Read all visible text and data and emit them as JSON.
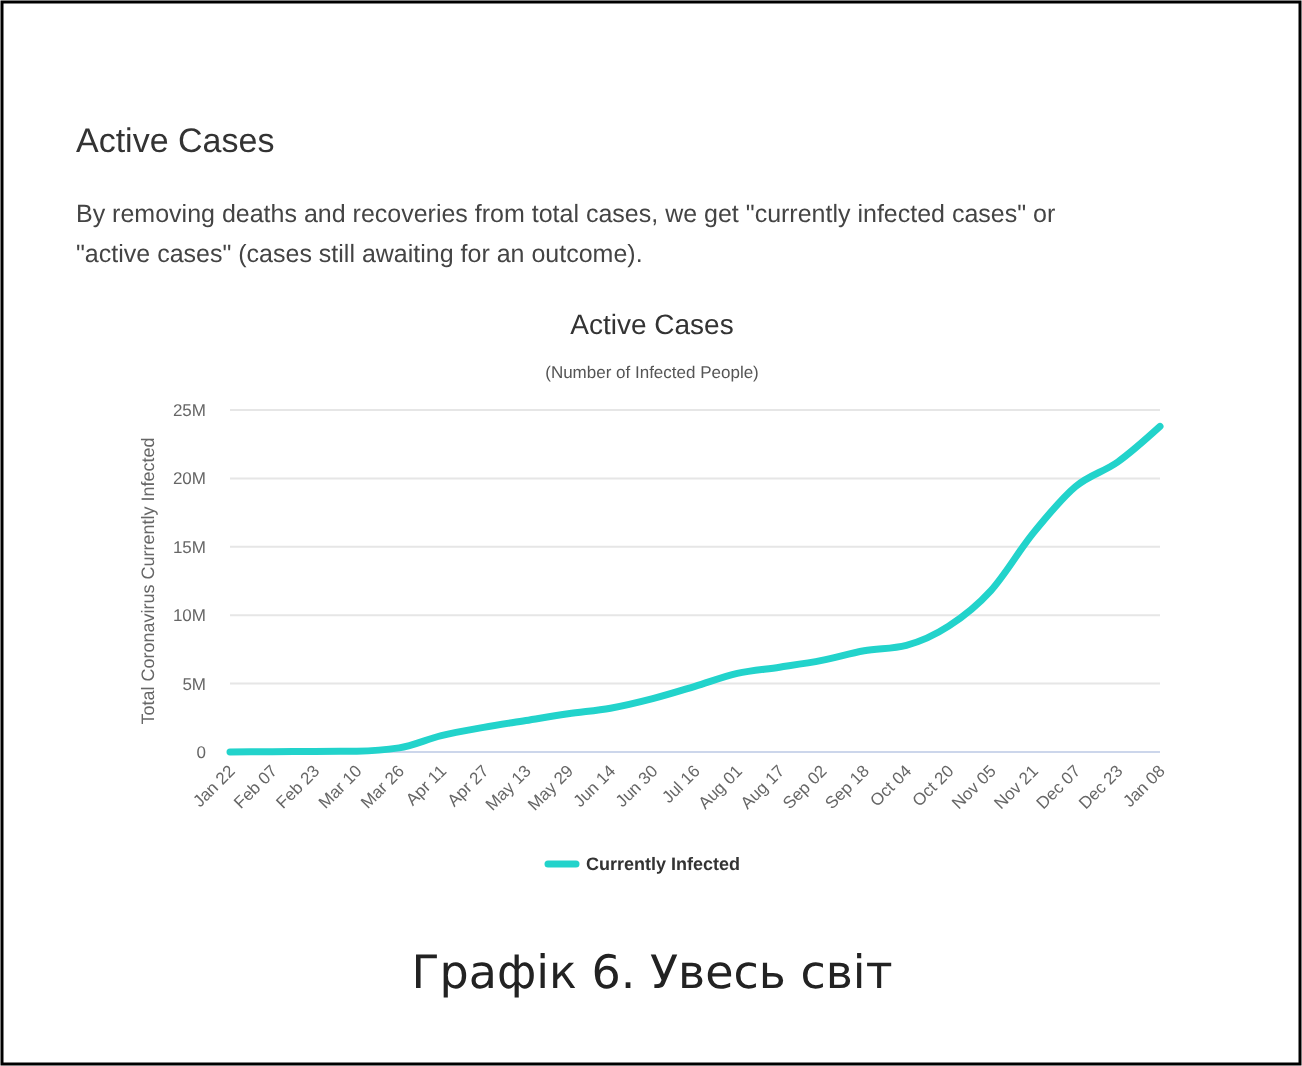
{
  "chart_data": {
    "type": "line",
    "title": "Active Cases",
    "subtitle": "(Number of Infected People)",
    "ylabel": "Total Coronavirus Currently Infected",
    "annotations": [
      "Active Cases",
      "By removing deaths and recoveries from total cases, we get \"currently infected cases\" or \"active cases\" (cases still awaiting for an outcome).",
      "Графік 6. Увесь світ"
    ],
    "categories": [
      "Jan 22",
      "Feb 07",
      "Feb 23",
      "Mar 10",
      "Mar 26",
      "Apr 11",
      "Apr 27",
      "May 13",
      "May 29",
      "Jun 14",
      "Jun 30",
      "Jul 16",
      "Aug 01",
      "Aug 17",
      "Sep 02",
      "Sep 18",
      "Oct 04",
      "Oct 20",
      "Nov 05",
      "Nov 21",
      "Dec 07",
      "Dec 23",
      "Jan 08"
    ],
    "series": [
      {
        "name": "Currently Infected",
        "color": "#22d3cb",
        "values": [
          0,
          20000,
          40000,
          60000,
          300000,
          1200000,
          1800000,
          2300000,
          2800000,
          3200000,
          3900000,
          4800000,
          5750000,
          6200000,
          6700000,
          7400000,
          7800000,
          9200000,
          11800000,
          16000000,
          19400000,
          21200000,
          23800000
        ]
      }
    ],
    "ylim": [
      0,
      25000000
    ],
    "yticks": [
      {
        "value": 0,
        "label": "0"
      },
      {
        "value": 5000000,
        "label": "5M"
      },
      {
        "value": 10000000,
        "label": "10M"
      },
      {
        "value": 15000000,
        "label": "15M"
      },
      {
        "value": 20000000,
        "label": "20M"
      },
      {
        "value": 25000000,
        "label": "25M"
      }
    ],
    "grid": "y",
    "legend": "bottom",
    "marker": "none",
    "line_style": "solid"
  }
}
